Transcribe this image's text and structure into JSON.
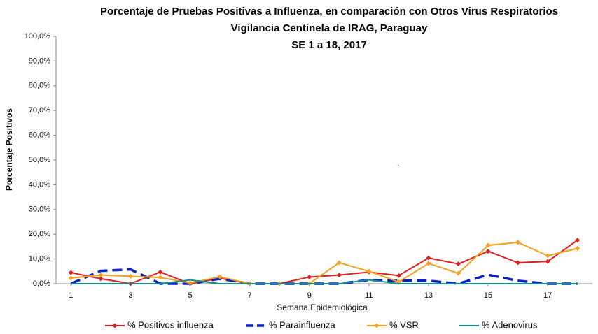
{
  "chart_data": {
    "type": "line",
    "title": [
      "Porcentaje de Pruebas Positivas a Influenza, en comparación con Otros Virus Respiratorios",
      "Vigilancia Centinela de IRAG, Paraguay",
      "SE 1 a 18, 2017"
    ],
    "x_label": "Semana Epidemiológica",
    "y_label": "Porcentaje Positivos",
    "annotation": "`",
    "x": [
      1,
      2,
      3,
      4,
      5,
      6,
      7,
      8,
      9,
      10,
      11,
      12,
      13,
      14,
      15,
      16,
      17,
      18
    ],
    "xlim": [
      0.5,
      18.5
    ],
    "xticks": [
      1,
      3,
      5,
      7,
      9,
      11,
      13,
      15,
      17
    ],
    "ylim": [
      0,
      100
    ],
    "yticks": [
      {
        "value": 0,
        "label": "0,0%"
      },
      {
        "value": 10,
        "label": "10,0%"
      },
      {
        "value": 20,
        "label": "20,0%"
      },
      {
        "value": 30,
        "label": "30,0%"
      },
      {
        "value": 40,
        "label": "40,0%"
      },
      {
        "value": 50,
        "label": "50,0%"
      },
      {
        "value": 60,
        "label": "60,0%"
      },
      {
        "value": 70,
        "label": "70,0%"
      },
      {
        "value": 80,
        "label": "80,0%"
      },
      {
        "value": 90,
        "label": "90,0%"
      },
      {
        "value": 100,
        "label": "100,0%"
      }
    ],
    "legend": "bottom",
    "series": [
      {
        "name": "% Positivos influenza",
        "color": "#e02020",
        "marker": "diamond",
        "dashed": false,
        "values": [
          4.5,
          2.0,
          0,
          4.7,
          0,
          2.2,
          0,
          0,
          2.7,
          3.5,
          4.7,
          3.3,
          10.4,
          8.0,
          13.1,
          8.5,
          9.0,
          17.6
        ]
      },
      {
        "name": "% Parainfluenza",
        "color": "#0a1fc8",
        "marker": "none",
        "dashed": true,
        "values": [
          0,
          5.2,
          5.8,
          0,
          0,
          2.0,
          0,
          0,
          0,
          0,
          1.5,
          1.2,
          1.2,
          0,
          3.6,
          1.2,
          0,
          0
        ]
      },
      {
        "name": "% VSR",
        "color": "#f7a020",
        "marker": "diamond",
        "dashed": false,
        "values": [
          2.3,
          3.5,
          3.0,
          2.5,
          0.3,
          2.8,
          0,
          0,
          0,
          8.5,
          5.0,
          0.7,
          8.2,
          4.2,
          15.5,
          16.7,
          11.3,
          14.3
        ]
      },
      {
        "name": "% Adenovirus",
        "color": "#14908a",
        "marker": "none",
        "dashed": false,
        "values": [
          0,
          0,
          0,
          0,
          1.5,
          0,
          0,
          0,
          0,
          0,
          1.5,
          0,
          0,
          0,
          0,
          0,
          0,
          0
        ]
      }
    ]
  }
}
